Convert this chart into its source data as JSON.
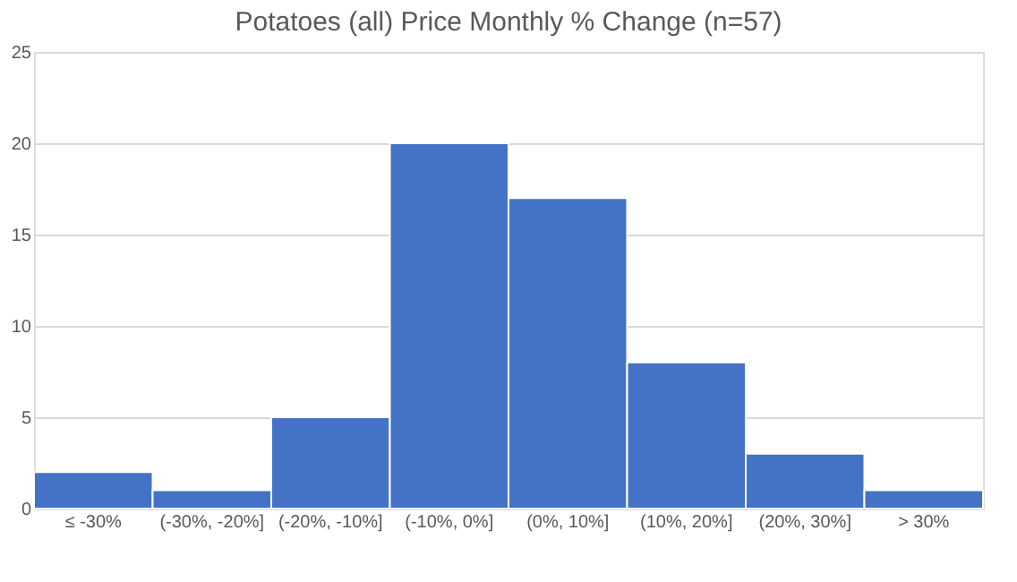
{
  "chart_data": {
    "type": "bar",
    "title": "Potatoes (all) Price Monthly % Change (n=57)",
    "categories": [
      "≤ -30%",
      "(-30%, -20%]",
      "(-20%, -10%]",
      "(-10%, 0%]",
      "(0%, 10%]",
      "(10%, 20%]",
      "(20%, 30%]",
      "> 30%"
    ],
    "values": [
      2,
      1,
      5,
      20,
      17,
      8,
      3,
      1
    ],
    "color": "#4472c4",
    "ylim": [
      0,
      25
    ],
    "yticks": [
      0,
      5,
      10,
      15,
      20,
      25
    ],
    "grid": "y"
  }
}
